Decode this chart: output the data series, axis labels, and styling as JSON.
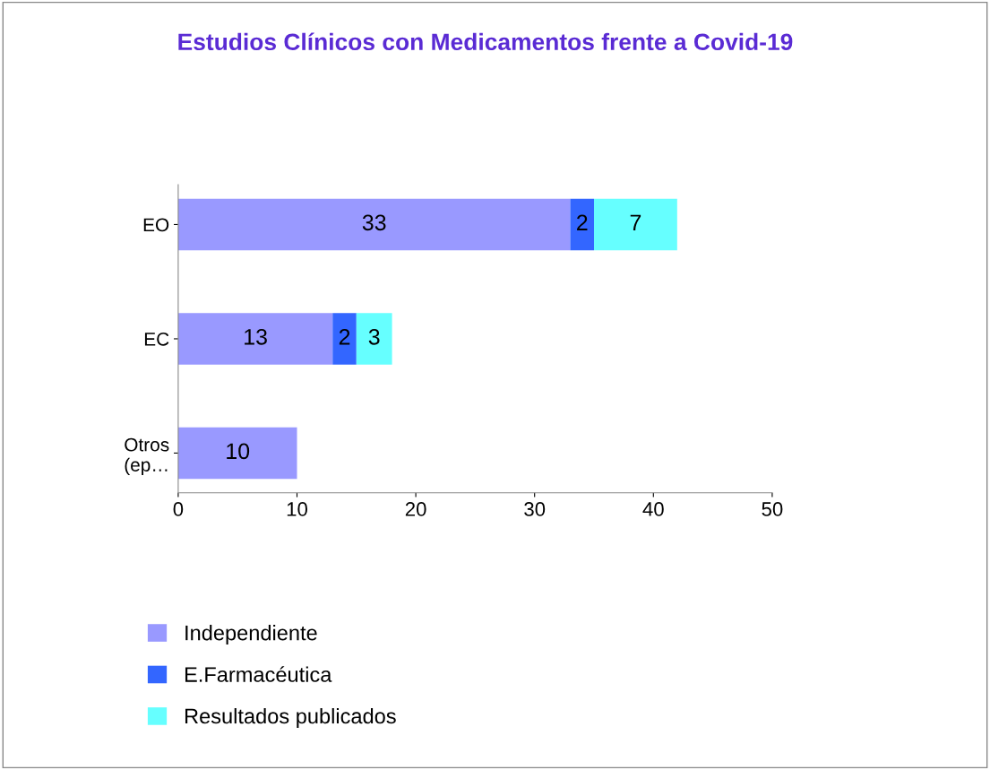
{
  "chart_data": {
    "type": "bar",
    "orientation": "horizontal",
    "stacked": true,
    "title": "Estudios Clínicos con Medicamentos frente a Covid-19",
    "categories": [
      "EO",
      "EC",
      "Otros (ep…"
    ],
    "series": [
      {
        "name": "Independiente",
        "color": "#9999ff",
        "values": [
          33,
          13,
          10
        ]
      },
      {
        "name": "E.Farmacéutica",
        "color": "#3366ff",
        "values": [
          2,
          2,
          null
        ]
      },
      {
        "name": "Resultados publicados",
        "color": "#66ffff",
        "values": [
          7,
          3,
          null
        ]
      }
    ],
    "xlim": [
      0,
      50
    ],
    "xticks": [
      0,
      10,
      20,
      30,
      40,
      50
    ],
    "data_labels": true,
    "legend": "bottom",
    "grid": false
  }
}
